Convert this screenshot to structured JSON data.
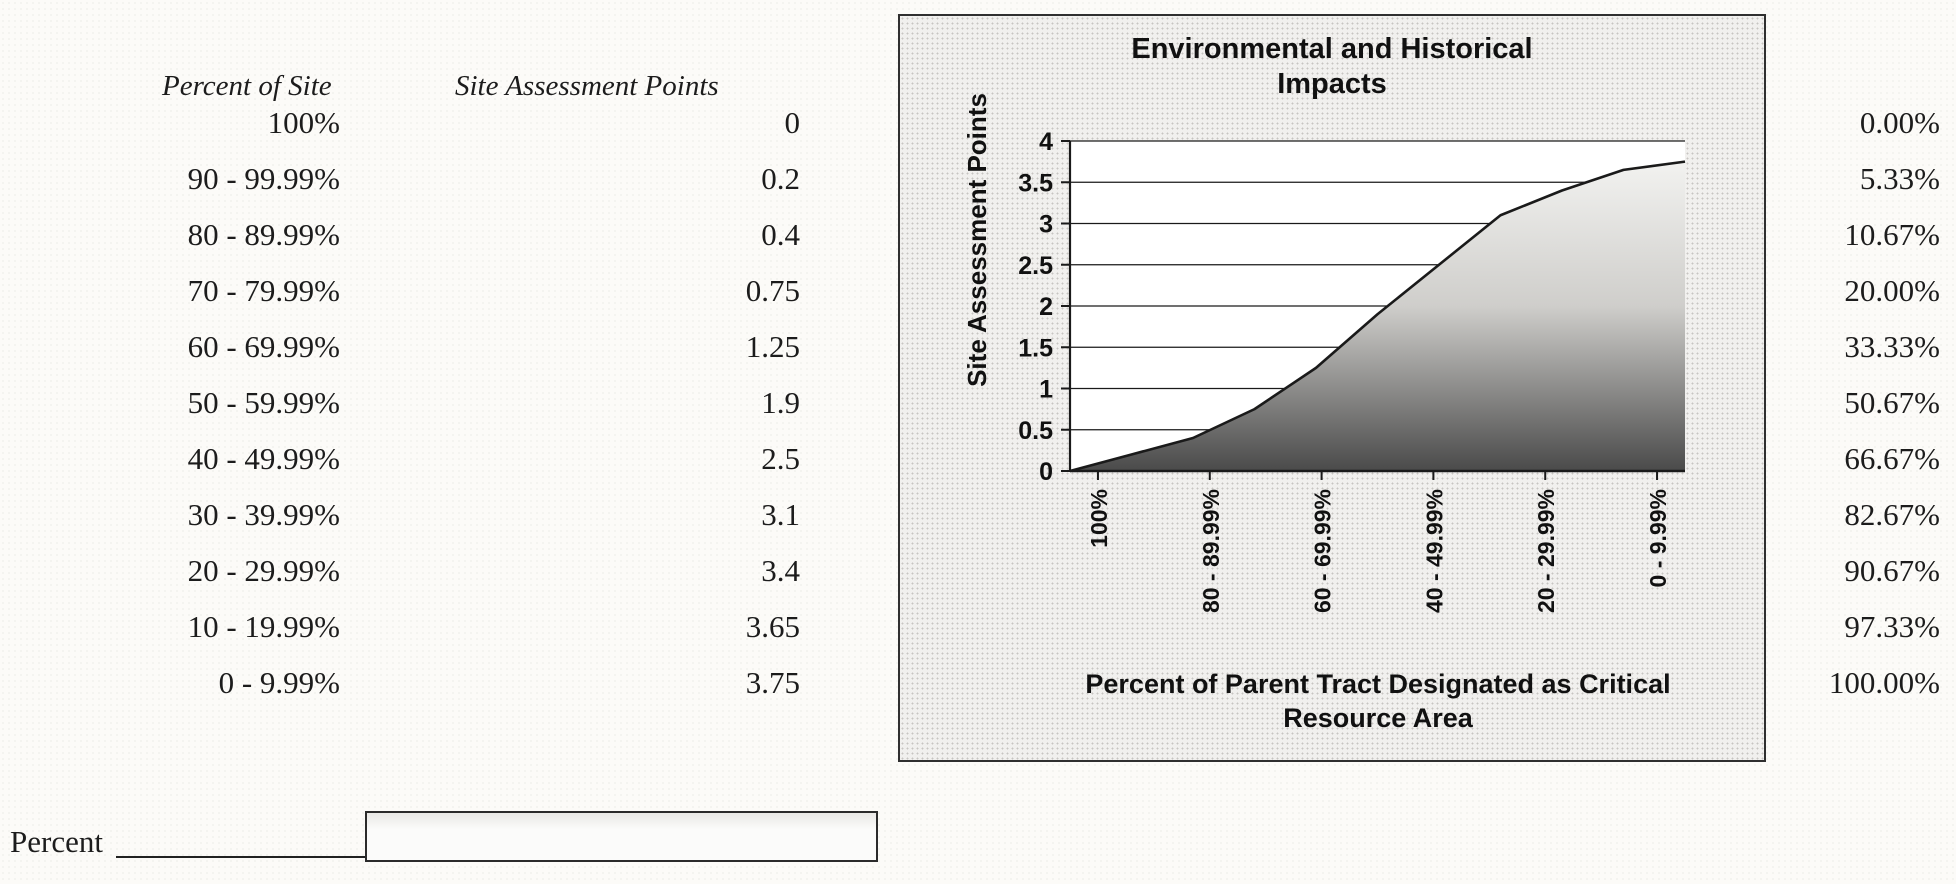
{
  "table": {
    "col1_header": "Percent of Site",
    "col2_header": "Site Assessment Points",
    "rows": [
      {
        "percent": "100%",
        "points": "0",
        "right_value": "0.00%"
      },
      {
        "percent": "90 - 99.99%",
        "points": "0.2",
        "right_value": "5.33%"
      },
      {
        "percent": "80 - 89.99%",
        "points": "0.4",
        "right_value": "10.67%"
      },
      {
        "percent": "70 - 79.99%",
        "points": "0.75",
        "right_value": "20.00%"
      },
      {
        "percent": "60 - 69.99%",
        "points": "1.25",
        "right_value": "33.33%"
      },
      {
        "percent": "50 - 59.99%",
        "points": "1.9",
        "right_value": "50.67%"
      },
      {
        "percent": "40 - 49.99%",
        "points": "2.5",
        "right_value": "66.67%"
      },
      {
        "percent": "30 - 39.99%",
        "points": "3.1",
        "right_value": "82.67%"
      },
      {
        "percent": "20 - 29.99%",
        "points": "3.4",
        "right_value": "90.67%"
      },
      {
        "percent": "10 - 19.99%",
        "points": "3.65",
        "right_value": "97.33%"
      },
      {
        "percent": "0 - 9.99%",
        "points": "3.75",
        "right_value": "100.00%"
      }
    ]
  },
  "chart_data": {
    "type": "area",
    "title": "Environmental and Historical Impacts",
    "ylabel": "Site Assessment Points",
    "xlabel": "Percent of Parent Tract Designated as Critical Resource Area",
    "categories": [
      "100%",
      "90 - 99.99%",
      "80 - 89.99%",
      "70 - 79.99%",
      "60 - 69.99%",
      "50 - 59.99%",
      "40 - 49.99%",
      "30 - 39.99%",
      "20 - 29.99%",
      "10 - 19.99%",
      "0 - 9.99%"
    ],
    "values": [
      0,
      0.2,
      0.4,
      0.75,
      1.25,
      1.9,
      2.5,
      3.1,
      3.4,
      3.65,
      3.75
    ],
    "x_tick_labels": [
      "100%",
      "80 - 89.99%",
      "60 - 69.99%",
      "40 - 49.99%",
      "20 - 29.99%",
      "0 - 9.99%"
    ],
    "x_tick_indices": [
      0,
      2,
      4,
      6,
      8,
      10
    ],
    "y_ticks": [
      0,
      0.5,
      1,
      1.5,
      2,
      2.5,
      3,
      3.5,
      4
    ],
    "y_tick_labels": [
      "0",
      "0.5",
      "1",
      "1.5",
      "2",
      "2.5",
      "3",
      "3.5",
      "4"
    ],
    "ylim": [
      0,
      4
    ],
    "grid": true,
    "legend": false,
    "line_color": "#1a1a1a",
    "fill_colors": {
      "top": "#f7f7f5",
      "mid": "#cfcecb",
      "bottom": "#4a4a4a"
    }
  },
  "form": {
    "label": "Percent",
    "input_value": ""
  }
}
